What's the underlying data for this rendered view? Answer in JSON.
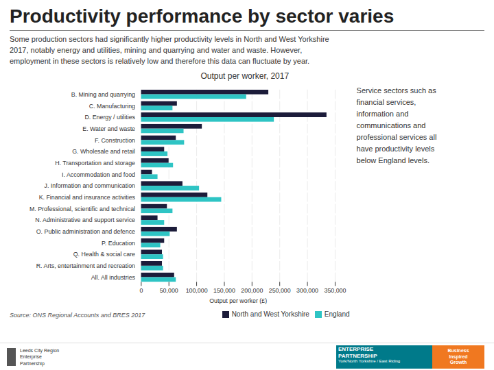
{
  "chart_data": {
    "type": "bar",
    "orientation": "horizontal",
    "title": "Productivity performance by sector varies",
    "subtitle": "Some production sectors had significantly higher productivity levels in North and West Yorkshire\n2017, notably energy and utilities, mining and quarrying and water and waste. However,\nemployment in these sectors is relatively low and therefore this data can fluctuate by year.",
    "chart_title": "Output per worker, 2017",
    "xlabel": "Output per worker (£)",
    "caption": "Source: ONS Regional Accounts and BRES 2017",
    "annotations": [
      "Service sectors such as\nfinancial services,\ninformation and\ncommunications and\nprofessional services all\nhave productivity levels\nbelow England levels.",
      "Leeds City Region\nEnterprise\nPartnership",
      "ENTERPRISE",
      "PARTNERSHIP",
      "York/North Yorkshire / East Riding",
      "Business\nInspired\nGrowth"
    ],
    "categories": [
      "B. Mining and quarrying",
      "C. Manufacturing",
      "D. Energy / utilities",
      "E. Water and waste",
      "F. Construction",
      "G. Wholesale and retail",
      "H. Transportation and storage",
      "I. Accommodation and food",
      "J. Information and communication",
      "K. Financial and insurance activities",
      "M. Professional, scientific and technical",
      "N. Administrative and support service",
      "O. Public administration and defence",
      "P. Education",
      "Q. Health & social care",
      "R. Arts, entertainment and recreation",
      "All. All industries"
    ],
    "series": [
      {
        "name": "North and West Yorkshire",
        "color": "#1c1c3a",
        "values": [
          230000,
          65000,
          335000,
          110000,
          63000,
          42000,
          50000,
          20000,
          75000,
          120000,
          47000,
          30000,
          65000,
          42000,
          38000,
          38000,
          60000
        ]
      },
      {
        "name": "England",
        "color": "#2ec4c4",
        "values": [
          190000,
          57000,
          240000,
          77000,
          78000,
          48000,
          58000,
          30000,
          105000,
          145000,
          57000,
          42000,
          52000,
          35000,
          40000,
          40000,
          63000
        ]
      }
    ],
    "xlim": [
      0,
      350000
    ],
    "xticks": [
      0,
      {
        "value": 50000,
        "label": "50,000"
      },
      {
        "value": 100000,
        "label": "100,000"
      },
      {
        "value": 150000,
        "label": "150,000"
      },
      {
        "value": 200000,
        "label": "200,000"
      },
      {
        "value": 250000,
        "label": "250,000"
      },
      {
        "value": 300000,
        "label": "300,000"
      },
      {
        "value": 350000,
        "label": "350,000"
      }
    ],
    "grid": true,
    "legend": "lower right"
  }
}
